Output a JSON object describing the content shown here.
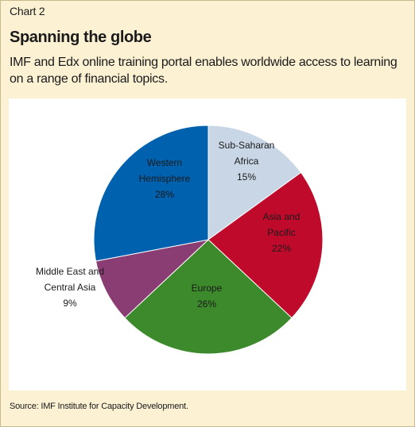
{
  "header": {
    "label": "Chart 2",
    "title": "Spanning the globe",
    "subtitle": "IMF and Edx online training portal enables worldwide access to learning on a range of financial topics."
  },
  "footer": {
    "source": "Source: IMF Institute for Capacity Development."
  },
  "chart_data": {
    "type": "pie",
    "title": "Spanning the globe",
    "slices": [
      {
        "label": [
          "Sub-Saharan",
          "Africa"
        ],
        "value": 15,
        "value_label": "15%",
        "color": "#c8d6e6"
      },
      {
        "label": [
          "Asia and",
          "Pacific"
        ],
        "value": 22,
        "value_label": "22%",
        "color": "#c00a2b"
      },
      {
        "label": [
          "Europe"
        ],
        "value": 26,
        "value_label": "26%",
        "color": "#3d8a2c"
      },
      {
        "label": [
          "Middle East and",
          "Central Asia"
        ],
        "value": 9,
        "value_label": "9%",
        "color": "#8a3d72"
      },
      {
        "label": [
          "Western",
          "Hemisphere"
        ],
        "value": 28,
        "value_label": "28%",
        "color": "#0061ae"
      }
    ],
    "start": "top, clockwise",
    "legend": "none"
  }
}
